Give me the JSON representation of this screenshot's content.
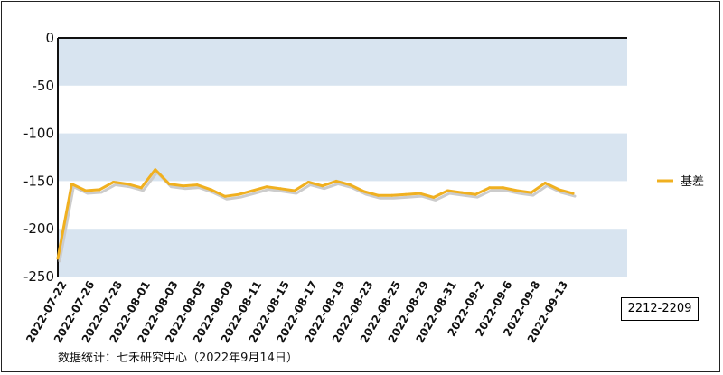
{
  "contract_label": "2212-2209",
  "source_note": "数据统计：七禾研究中心（2022年9月14日）",
  "colors": {
    "band": "#d8e4f0",
    "line": "#f0b020",
    "shadow": "#cccccc",
    "axis": "#111111"
  },
  "chart_data": {
    "type": "line",
    "title": "",
    "xlabel": "",
    "ylabel": "",
    "ylim": [
      -250,
      0
    ],
    "yticks": [
      0,
      -50,
      -100,
      -150,
      -200,
      -250
    ],
    "grid": "alternating horizontal bands",
    "legend_position": "right",
    "x_tick_labels": [
      "2022-07-22",
      "2022-07-26",
      "2022-07-28",
      "2022-08-01",
      "2022-08-03",
      "2022-08-05",
      "2022-08-09",
      "2022-08-11",
      "2022-08-15",
      "2022-08-17",
      "2022-08-19",
      "2022-08-23",
      "2022-08-25",
      "2022-08-29",
      "2022-08-31",
      "2022-09-2",
      "2022-09-6",
      "2022-09-8",
      "2022-09-13"
    ],
    "series": [
      {
        "name": "基差",
        "values": [
          -231,
          -153,
          -160,
          -159,
          -151,
          -153,
          -157,
          -138,
          -153,
          -155,
          -154,
          -159,
          -166,
          -164,
          -160,
          -156,
          -158,
          -160,
          -151,
          -155,
          -150,
          -154,
          -161,
          -165,
          -165,
          -164,
          -163,
          -167,
          -160,
          -162,
          -164,
          -157,
          -157,
          -160,
          -162,
          -152,
          -159,
          -163
        ]
      }
    ]
  }
}
